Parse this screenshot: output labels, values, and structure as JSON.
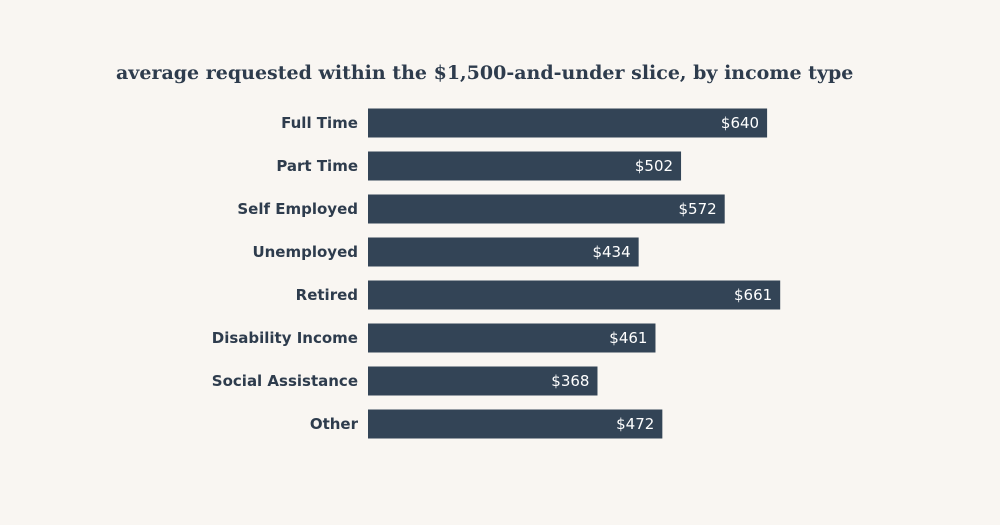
{
  "chart_data": {
    "type": "bar",
    "orientation": "horizontal",
    "title": "average requested within the $1,500-and-under slice, by income type",
    "categories": [
      "Full Time",
      "Part Time",
      "Self Employed",
      "Unemployed",
      "Retired",
      "Disability Income",
      "Social Assistance",
      "Other"
    ],
    "values": [
      640,
      502,
      572,
      434,
      661,
      461,
      368,
      472
    ],
    "value_labels": [
      "$640",
      "$502",
      "$572",
      "$434",
      "$661",
      "$461",
      "$368",
      "$472"
    ],
    "xlabel": "",
    "ylabel": "",
    "xlim": [
      0,
      1000
    ],
    "grid": false,
    "legend": "none",
    "colors": {
      "bar": "#334456",
      "text": "#2e3c4d",
      "value_text": "#ffffff",
      "background": "#f9f6f2"
    }
  }
}
